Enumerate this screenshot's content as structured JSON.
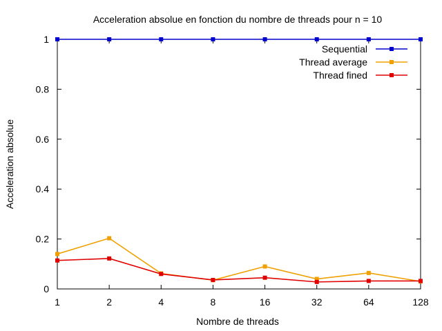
{
  "chart_data": {
    "type": "line",
    "title": "Acceleration absolue en fonction du nombre de threads pour n = 10",
    "xlabel": "Nombre de threads",
    "ylabel": "Acceleration absolue",
    "x_scale": "log2",
    "categories": [
      "1",
      "2",
      "4",
      "8",
      "16",
      "32",
      "64",
      "128"
    ],
    "x": [
      1,
      2,
      4,
      8,
      16,
      32,
      64,
      128
    ],
    "ylim": [
      0,
      1
    ],
    "y_ticks": [
      "0",
      "0.2",
      "0.4",
      "0.6",
      "0.8",
      "1"
    ],
    "y_tick_values": [
      0,
      0.2,
      0.4,
      0.6,
      0.8,
      1
    ],
    "grid": false,
    "legend_position": "top-right",
    "series": [
      {
        "name": "Sequential",
        "color": "#0000cc",
        "values": [
          1,
          1,
          1,
          1,
          1,
          1,
          1,
          1
        ]
      },
      {
        "name": "Thread average",
        "color": "#f0a000",
        "values": [
          0.14,
          0.203,
          0.062,
          0.035,
          0.09,
          0.04,
          0.064,
          0.03
        ]
      },
      {
        "name": "Thread fined",
        "color": "#e00000",
        "values": [
          0.114,
          0.122,
          0.06,
          0.036,
          0.045,
          0.028,
          0.032,
          0.032
        ]
      }
    ]
  }
}
